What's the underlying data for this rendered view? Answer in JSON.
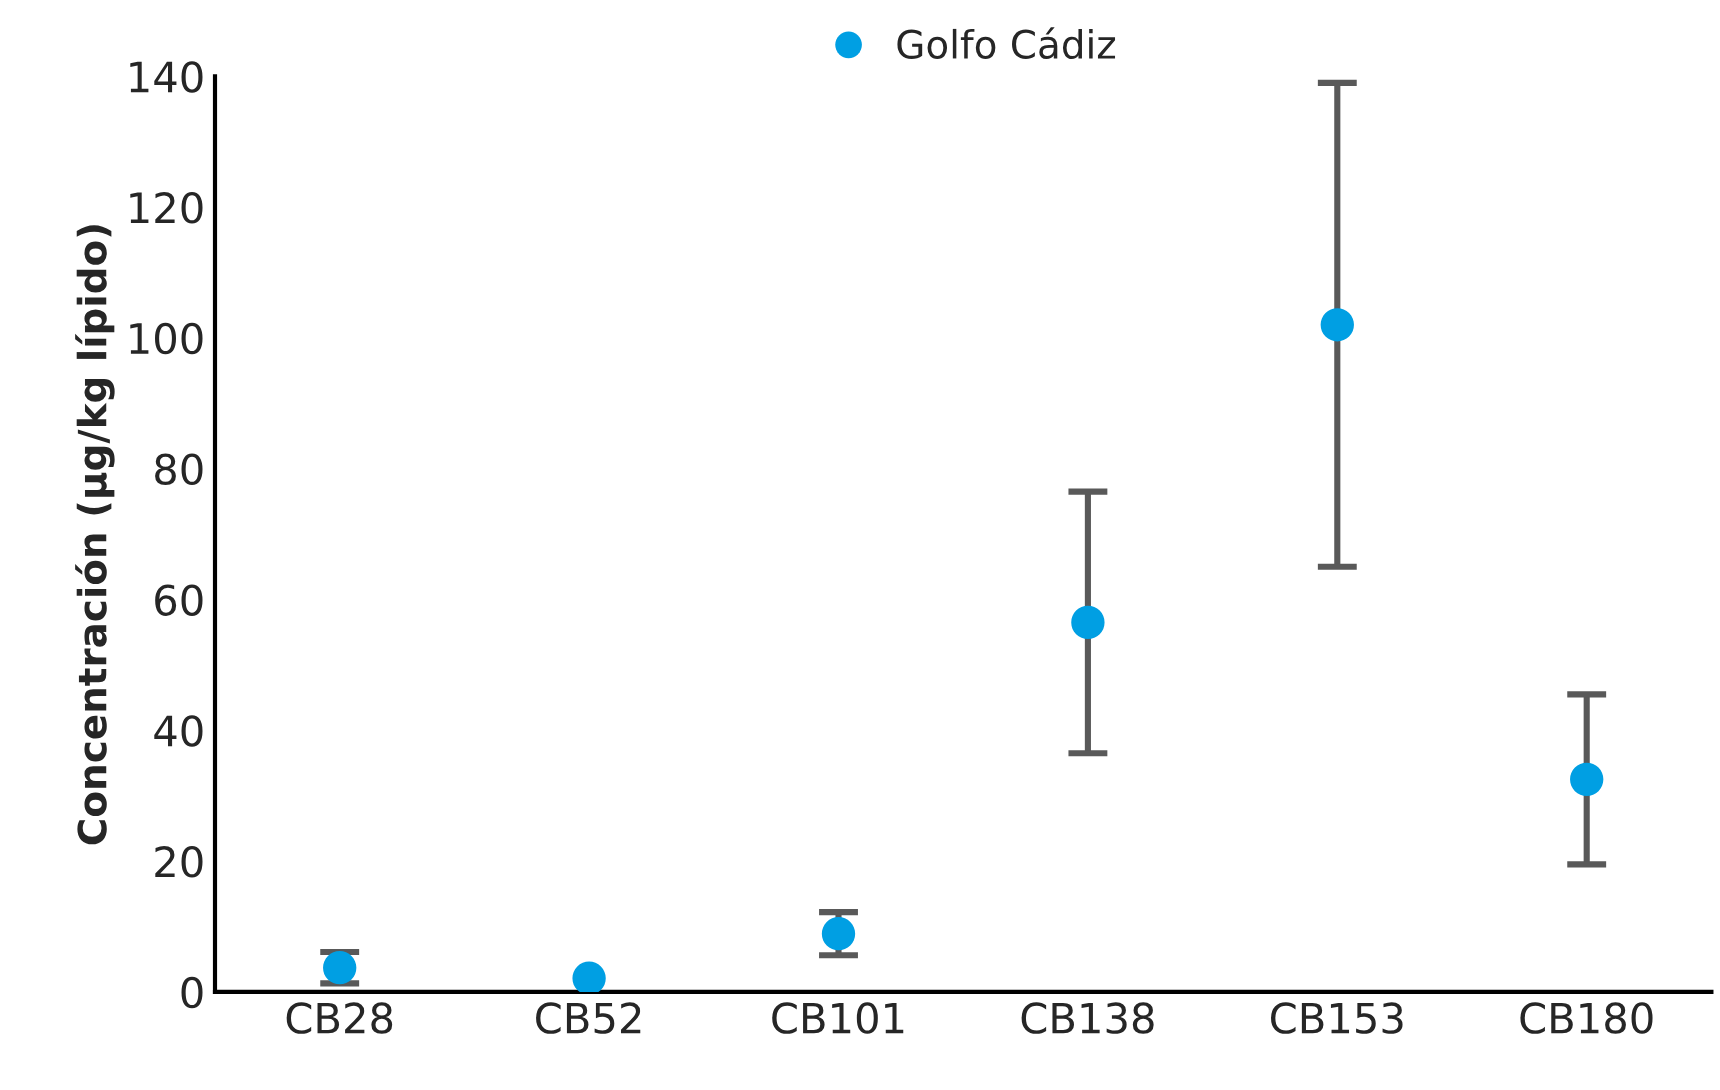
{
  "chart_data": {
    "type": "scatter",
    "ylabel": "Concentración (µg/kg lípido)",
    "categories": [
      "CB28",
      "CB52",
      "CB101",
      "CB138",
      "CB153",
      "CB180"
    ],
    "series": [
      {
        "name": "Golfo Cádiz",
        "color": "#009fe3",
        "values": [
          3.7,
          2.1,
          8.9,
          56.5,
          102,
          32.5
        ],
        "errors": [
          2.4,
          null,
          3.3,
          20,
          37,
          13
        ]
      }
    ],
    "ylim": [
      0,
      140
    ],
    "yticks": [
      0,
      20,
      40,
      60,
      80,
      100,
      120,
      140
    ],
    "grid": false,
    "legend": "top",
    "marker": "circle"
  }
}
